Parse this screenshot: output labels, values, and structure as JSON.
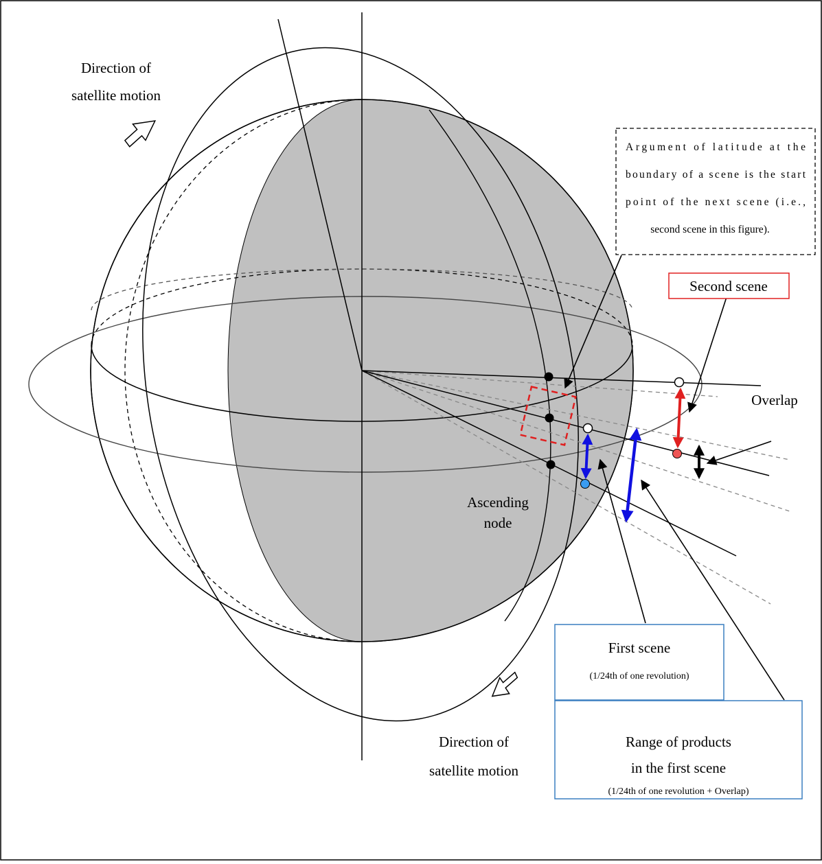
{
  "labels": {
    "direction_top_line1": "Direction of",
    "direction_top_line2": "satellite motion",
    "direction_bottom_line1": "Direction of",
    "direction_bottom_line2": "satellite motion",
    "ascending_line1": "Ascending",
    "ascending_line2": "node",
    "overlap": "Overlap",
    "second_scene": "Second scene",
    "first_scene": "First scene",
    "first_scene_sub": "(1/24th of one revolution)",
    "range_line1": "Range of products",
    "range_line2": "in the first scene",
    "range_sub": "(1/24th of one revolution + Overlap)",
    "note_line1": "Argument of latitude at the",
    "note_line2": "boundary of a scene is the start",
    "note_line3": "point of the next scene (i.e.,",
    "note_line4": "second scene in this figure)."
  },
  "colors": {
    "sphere_shade": "#c0c0c0",
    "red_accent": "#e02020",
    "blue_accent": "#1010e0",
    "box_blue_border": "#3a7fc0",
    "box_red_border": "#e02020"
  }
}
